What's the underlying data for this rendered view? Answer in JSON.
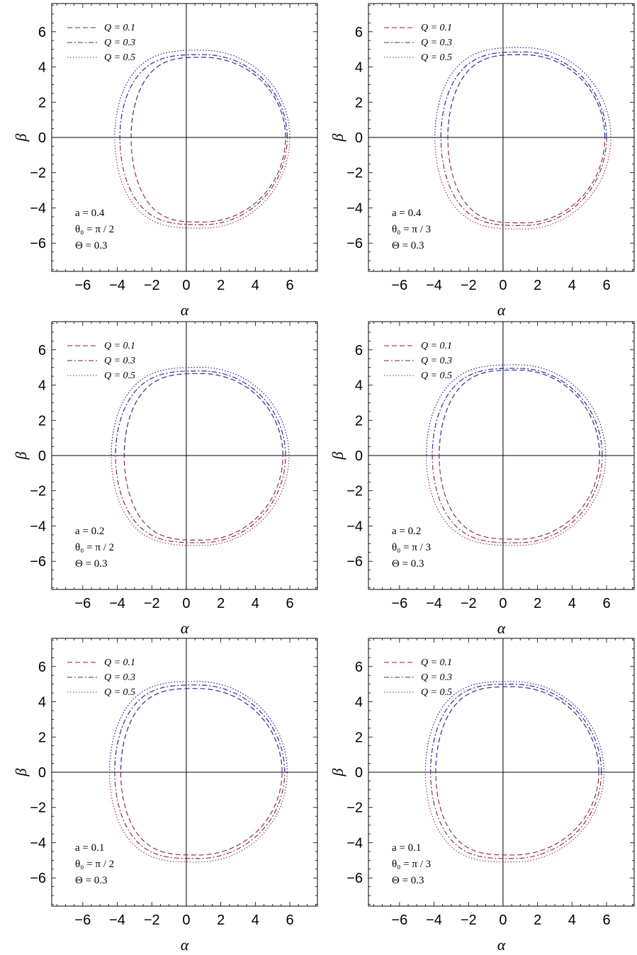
{
  "chart_data": [
    {
      "type": "line",
      "xlabel": "α",
      "ylabel": "β",
      "xlim": [
        -7.8,
        7.6
      ],
      "ylim": [
        -7.6,
        7.6
      ],
      "xticks": [
        -6,
        -4,
        -2,
        0,
        2,
        4,
        6
      ],
      "yticks": [
        -6,
        -4,
        -2,
        0,
        2,
        4,
        6
      ],
      "series": [
        {
          "name": "Q = 0.1",
          "style": "dashed",
          "left": -3.2,
          "right": 5.75,
          "top": 4.55,
          "bottom": -4.8,
          "cx": 1.0
        },
        {
          "name": "Q = 0.3",
          "style": "dashdot",
          "left": -3.85,
          "right": 5.85,
          "top": 4.7,
          "bottom": -4.95,
          "cx": 1.0
        },
        {
          "name": "Q = 0.5",
          "style": "dotted",
          "left": -4.15,
          "right": 6.0,
          "top": 4.95,
          "bottom": -5.15,
          "cx": 1.0
        }
      ],
      "params": [
        "a = 0.4",
        "θ₀ = π / 2",
        "Θ = 0.3"
      ]
    },
    {
      "type": "line",
      "xlabel": "α",
      "ylabel": "β",
      "xlim": [
        -7.8,
        7.6
      ],
      "ylim": [
        -7.6,
        7.6
      ],
      "xticks": [
        -6,
        -4,
        -2,
        0,
        2,
        4,
        6
      ],
      "yticks": [
        -6,
        -4,
        -2,
        0,
        2,
        4,
        6
      ],
      "series": [
        {
          "name": "Q = 0.1",
          "style": "dashed",
          "left": -3.2,
          "right": 5.9,
          "top": 4.7,
          "bottom": -4.85,
          "cx": 1.2
        },
        {
          "name": "Q = 0.3",
          "style": "dashdot",
          "left": -3.6,
          "right": 6.0,
          "top": 4.85,
          "bottom": -5.0,
          "cx": 1.2
        },
        {
          "name": "Q = 0.5",
          "style": "dotted",
          "left": -3.95,
          "right": 6.25,
          "top": 5.1,
          "bottom": -5.2,
          "cx": 1.2
        }
      ],
      "params": [
        "a = 0.4",
        "θ₀ = π / 3",
        "Θ = 0.3"
      ]
    },
    {
      "type": "line",
      "xlabel": "α",
      "ylabel": "β",
      "xlim": [
        -7.8,
        7.6
      ],
      "ylim": [
        -7.6,
        7.6
      ],
      "xticks": [
        -6,
        -4,
        -2,
        0,
        2,
        4,
        6
      ],
      "yticks": [
        -6,
        -4,
        -2,
        0,
        2,
        4,
        6
      ],
      "series": [
        {
          "name": "Q = 0.1",
          "style": "dashed",
          "left": -3.6,
          "right": 5.6,
          "top": 4.65,
          "bottom": -4.8,
          "cx": 0.9
        },
        {
          "name": "Q = 0.3",
          "style": "dashdot",
          "left": -4.1,
          "right": 5.75,
          "top": 4.8,
          "bottom": -4.95,
          "cx": 0.9
        },
        {
          "name": "Q = 0.5",
          "style": "dotted",
          "left": -4.35,
          "right": 5.95,
          "top": 5.0,
          "bottom": -5.1,
          "cx": 0.9
        }
      ],
      "params": [
        "a = 0.2",
        "θ₀ = π / 2",
        "Θ = 0.3"
      ]
    },
    {
      "type": "line",
      "xlabel": "α",
      "ylabel": "β",
      "xlim": [
        -7.8,
        7.6
      ],
      "ylim": [
        -7.6,
        7.6
      ],
      "xticks": [
        -6,
        -4,
        -2,
        0,
        2,
        4,
        6
      ],
      "yticks": [
        -6,
        -4,
        -2,
        0,
        2,
        4,
        6
      ],
      "series": [
        {
          "name": "Q = 0.1",
          "style": "dashed",
          "left": -3.7,
          "right": 5.6,
          "top": 4.85,
          "bottom": -4.75,
          "cx": 0.9
        },
        {
          "name": "Q = 0.3",
          "style": "dashdot",
          "left": -4.1,
          "right": 5.75,
          "top": 4.95,
          "bottom": -4.95,
          "cx": 0.9
        },
        {
          "name": "Q = 0.5",
          "style": "dotted",
          "left": -4.45,
          "right": 5.95,
          "top": 5.15,
          "bottom": -5.1,
          "cx": 0.9
        }
      ],
      "params": [
        "a = 0.2",
        "θ₀ = π / 3",
        "Θ = 0.3"
      ]
    },
    {
      "type": "line",
      "xlabel": "α",
      "ylabel": "β",
      "xlim": [
        -7.8,
        7.6
      ],
      "ylim": [
        -7.6,
        7.6
      ],
      "xticks": [
        -6,
        -4,
        -2,
        0,
        2,
        4,
        6
      ],
      "yticks": [
        -6,
        -4,
        -2,
        0,
        2,
        4,
        6
      ],
      "series": [
        {
          "name": "Q = 0.1",
          "style": "dashed",
          "left": -3.8,
          "right": 5.55,
          "top": 4.75,
          "bottom": -4.7,
          "cx": 0.7
        },
        {
          "name": "Q = 0.3",
          "style": "dashdot",
          "left": -4.15,
          "right": 5.7,
          "top": 4.95,
          "bottom": -4.9,
          "cx": 0.7
        },
        {
          "name": "Q = 0.5",
          "style": "dotted",
          "left": -4.45,
          "right": 5.85,
          "top": 5.15,
          "bottom": -5.1,
          "cx": 0.7
        }
      ],
      "params": [
        "a = 0.1",
        "θ₀ = π / 2",
        "Θ = 0.3"
      ]
    },
    {
      "type": "line",
      "xlabel": "α",
      "ylabel": "β",
      "xlim": [
        -7.8,
        7.6
      ],
      "ylim": [
        -7.6,
        7.6
      ],
      "xticks": [
        -6,
        -4,
        -2,
        0,
        2,
        4,
        6
      ],
      "yticks": [
        -6,
        -4,
        -2,
        0,
        2,
        4,
        6
      ],
      "series": [
        {
          "name": "Q = 0.1",
          "style": "dashed",
          "left": -3.9,
          "right": 5.55,
          "top": 4.85,
          "bottom": -4.7,
          "cx": 0.6
        },
        {
          "name": "Q = 0.3",
          "style": "dashdot",
          "left": -4.2,
          "right": 5.7,
          "top": 5.0,
          "bottom": -4.9,
          "cx": 0.6
        },
        {
          "name": "Q = 0.5",
          "style": "dotted",
          "left": -4.5,
          "right": 5.85,
          "top": 5.15,
          "bottom": -5.1,
          "cx": 0.6
        }
      ],
      "params": [
        "a = 0.1",
        "θ₀ = π / 3",
        "Θ = 0.3"
      ]
    }
  ]
}
